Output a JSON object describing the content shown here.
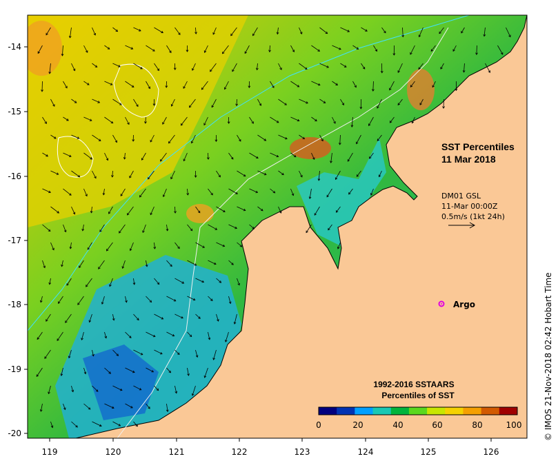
{
  "title": {
    "line1": "SST Percentiles",
    "line2": "11 Mar 2018"
  },
  "current_legend": {
    "line1": "DM01 GSL",
    "line2": "11-Mar 00:00Z",
    "line3": "0.5m/s (1kt 24h)"
  },
  "argo_label": "Argo",
  "colorbar": {
    "title_line1": "1992-2016 SSTAARS",
    "title_line2": "Percentiles of SST",
    "tick_labels": [
      "0",
      "20",
      "40",
      "60",
      "80",
      "100"
    ],
    "colors": [
      "#00007f",
      "#0033b3",
      "#00a0ff",
      "#19c8b4",
      "#00b43c",
      "#5ad81e",
      "#c8e600",
      "#f5d200",
      "#f5a000",
      "#d25a00",
      "#a00000"
    ]
  },
  "axes": {
    "lon_labels": [
      "119",
      "120",
      "121",
      "122",
      "123",
      "124",
      "125",
      "126"
    ],
    "lat_labels": [
      "-14",
      "-15",
      "-16",
      "-17",
      "-18",
      "-19",
      "-20"
    ]
  },
  "credit": "© IMOS 21-Nov-2018 02:42 Hobart Time",
  "colors": {
    "land": "#fac896",
    "argo": "#e000e0"
  }
}
